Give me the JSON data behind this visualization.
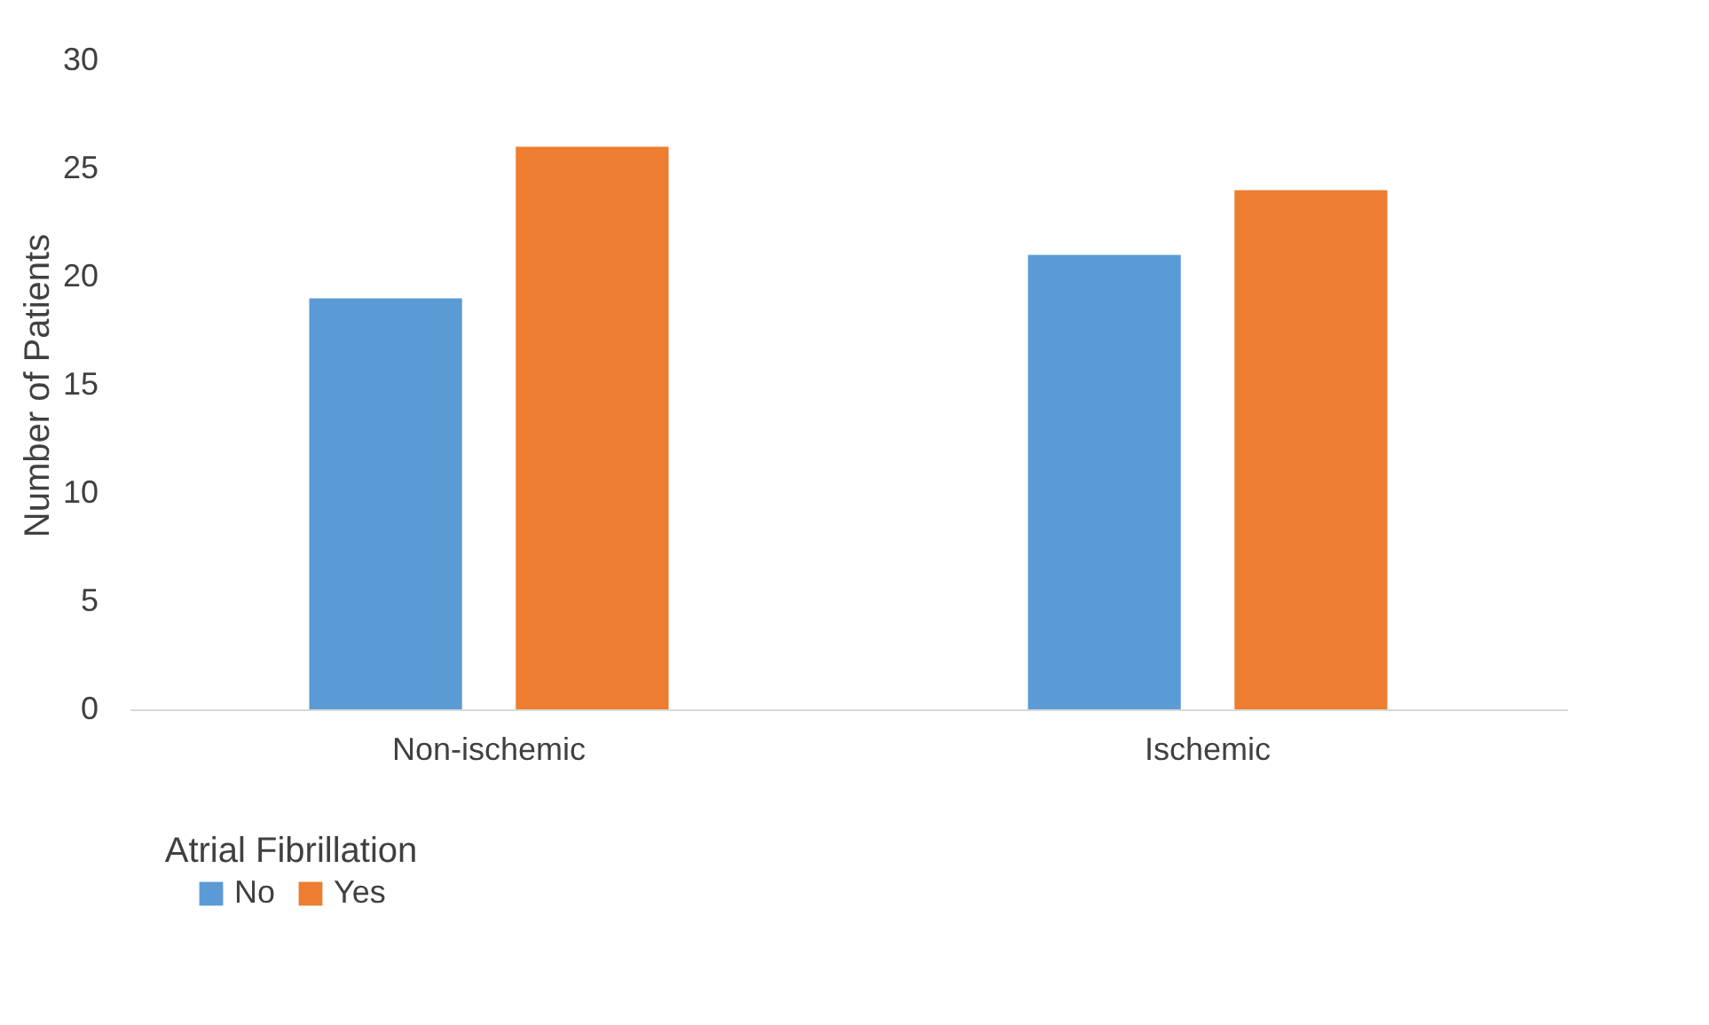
{
  "chart_data": {
    "type": "bar",
    "categories": [
      "Non-ischemic",
      "Ischemic"
    ],
    "ylabel": "Number of Patients",
    "legend_title": "Atrial Fibrillation",
    "series": [
      {
        "name": "No",
        "color": "#5b9bd5",
        "values": [
          19,
          21
        ]
      },
      {
        "name": "Yes",
        "color": "#ed7d31",
        "values": [
          26,
          24
        ]
      }
    ],
    "ylim": [
      0,
      30
    ],
    "yticks": [
      0,
      5,
      10,
      15,
      20,
      25,
      30
    ],
    "grid": false,
    "legend": "bottom"
  }
}
